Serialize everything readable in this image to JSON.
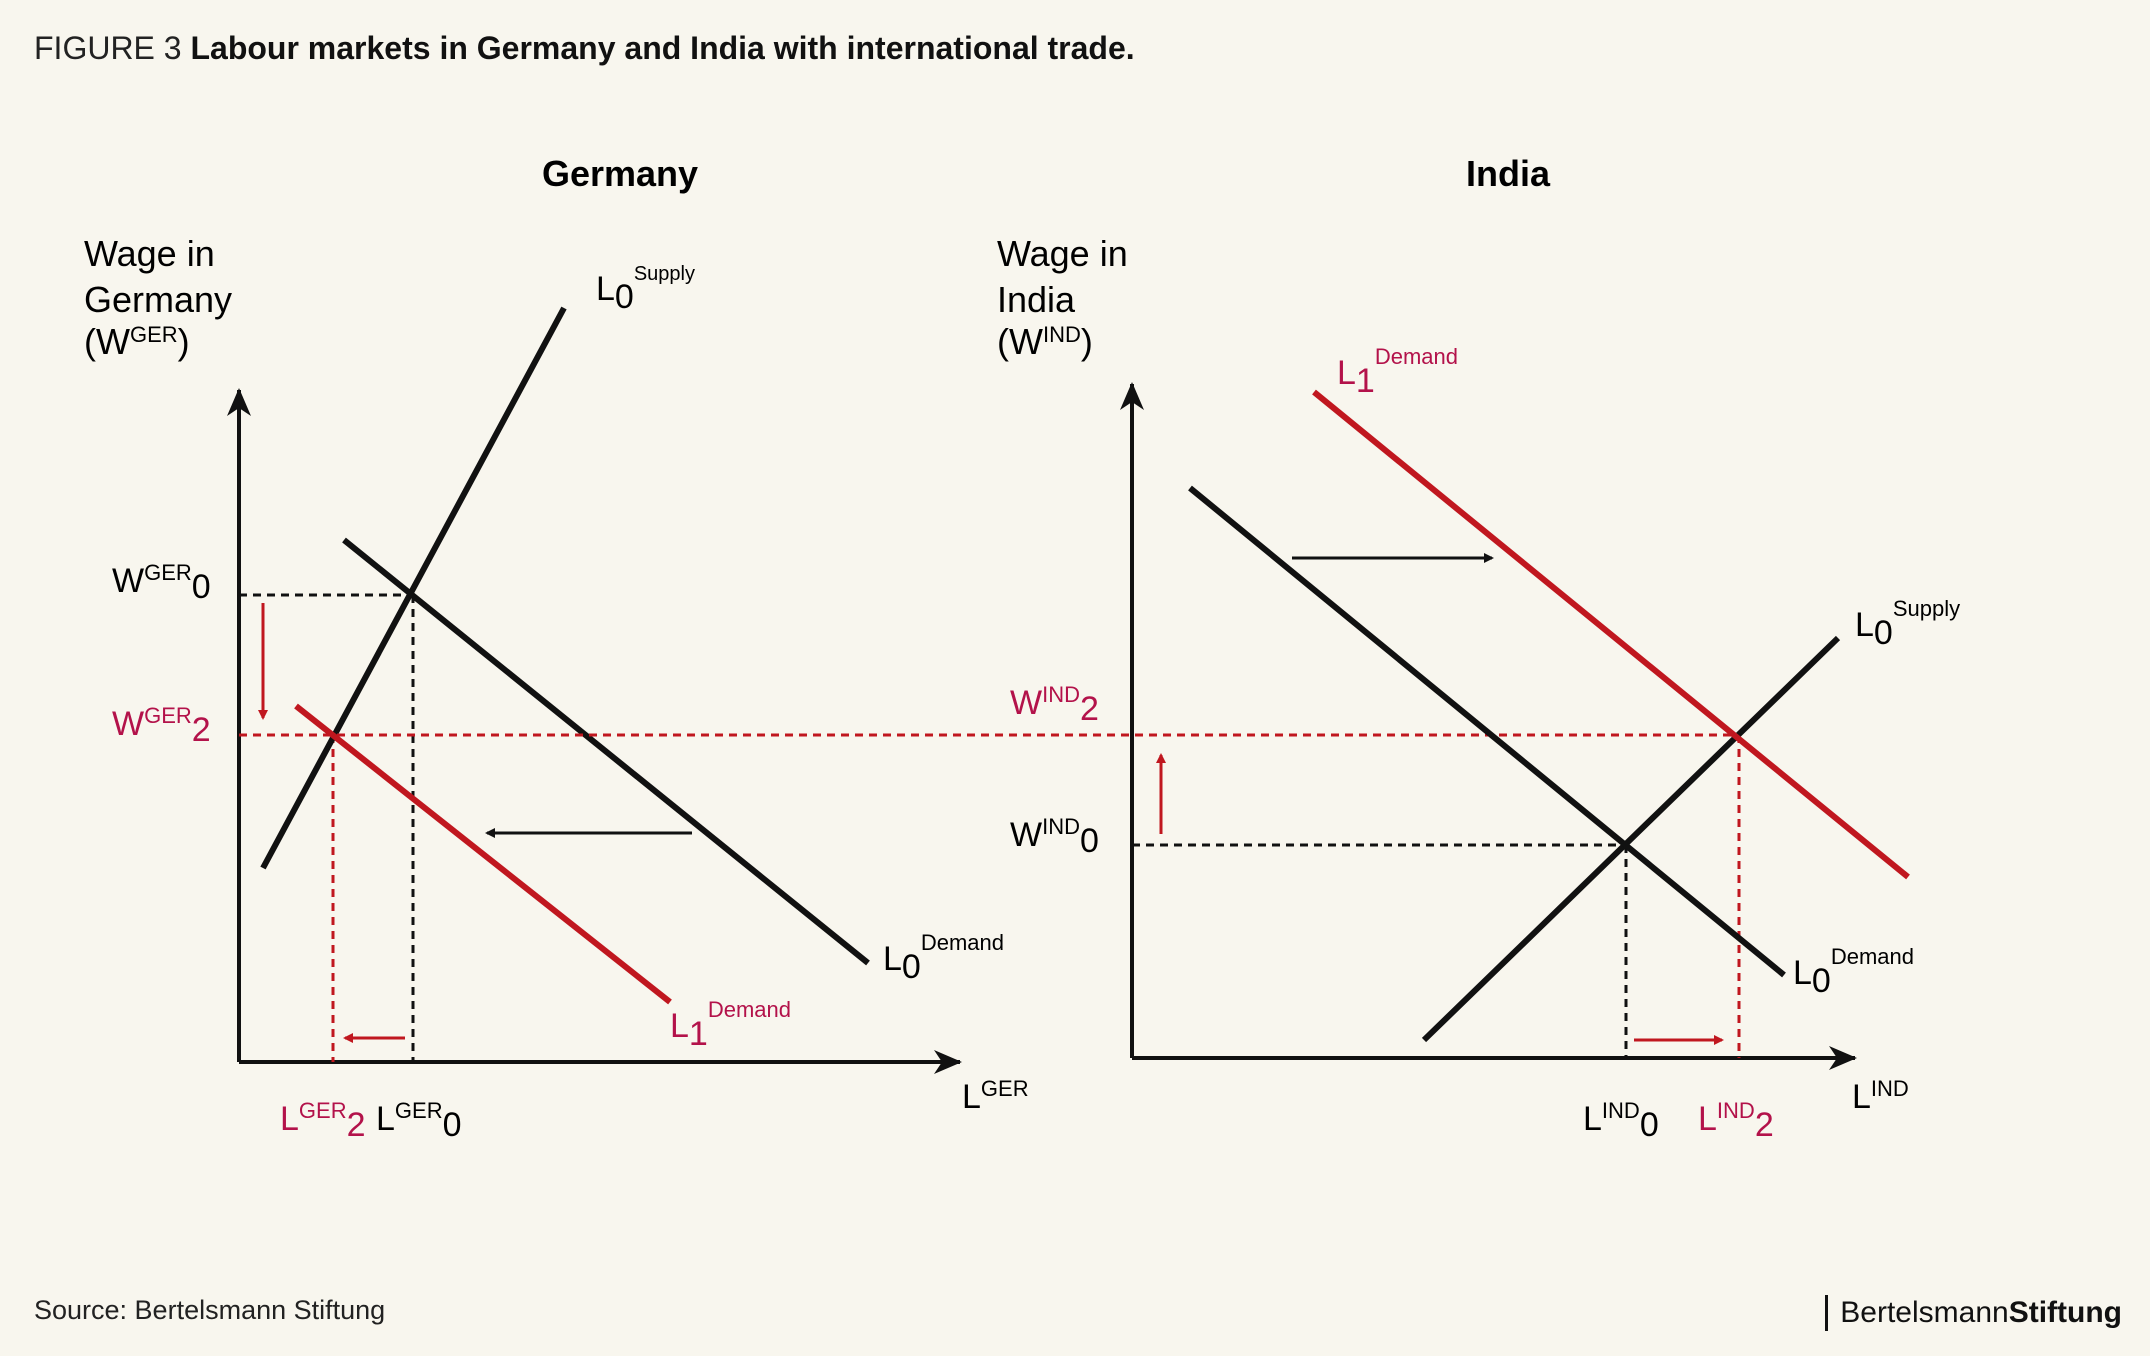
{
  "figure": {
    "lead": "FIGURE 3",
    "title": "Labour markets in Germany and India with international trade."
  },
  "source": "Source: Bertelsmann Stiftung",
  "brand": {
    "part1": "Bertelsmann",
    "part2": "Stiftung"
  },
  "colors": {
    "background": "#f8f6ee",
    "black": "#111111",
    "red": "#c0171f",
    "label_red": "#b3124a"
  },
  "germany": {
    "title": "Germany",
    "ylabel": [
      "Wage in",
      "Germany"
    ],
    "ylabel_symbol": {
      "open": "(W",
      "sup": "GER",
      "close": ")"
    },
    "xlabel": {
      "base": "L",
      "sup": "GER"
    },
    "supply": {
      "base": "L",
      "sub": "0",
      "sup": "Supply"
    },
    "demand0": {
      "base": "L",
      "sub": "0",
      "sup": "Demand"
    },
    "demand1": {
      "base": "L",
      "sub": "1",
      "sup": "Demand"
    },
    "wage0": {
      "base": "W",
      "sup": "GER",
      "sub": "0"
    },
    "wage2": {
      "base": "W",
      "sup": "GER",
      "sub": "2"
    },
    "lab0": {
      "base": "L",
      "sup": "GER",
      "sub": "0"
    },
    "lab2": {
      "base": "L",
      "sup": "GER",
      "sub": "2"
    }
  },
  "india": {
    "title": "India",
    "ylabel": [
      "Wage in",
      "India"
    ],
    "ylabel_symbol": {
      "open": "(W",
      "sup": "IND",
      "close": ")"
    },
    "xlabel": {
      "base": "L",
      "sup": "IND"
    },
    "supply": {
      "base": "L",
      "sub": "0",
      "sup": "Supply"
    },
    "demand0": {
      "base": "L",
      "sub": "0",
      "sup": "Demand"
    },
    "demand1": {
      "base": "L",
      "sub": "1",
      "sup": "Demand"
    },
    "wage0": {
      "base": "W",
      "sup": "IND",
      "sub": "0"
    },
    "wage2": {
      "base": "W",
      "sup": "IND",
      "sub": "2"
    },
    "lab0": {
      "base": "L",
      "sup": "IND",
      "sub": "0"
    },
    "lab2": {
      "base": "L",
      "sup": "IND",
      "sub": "2"
    }
  }
}
